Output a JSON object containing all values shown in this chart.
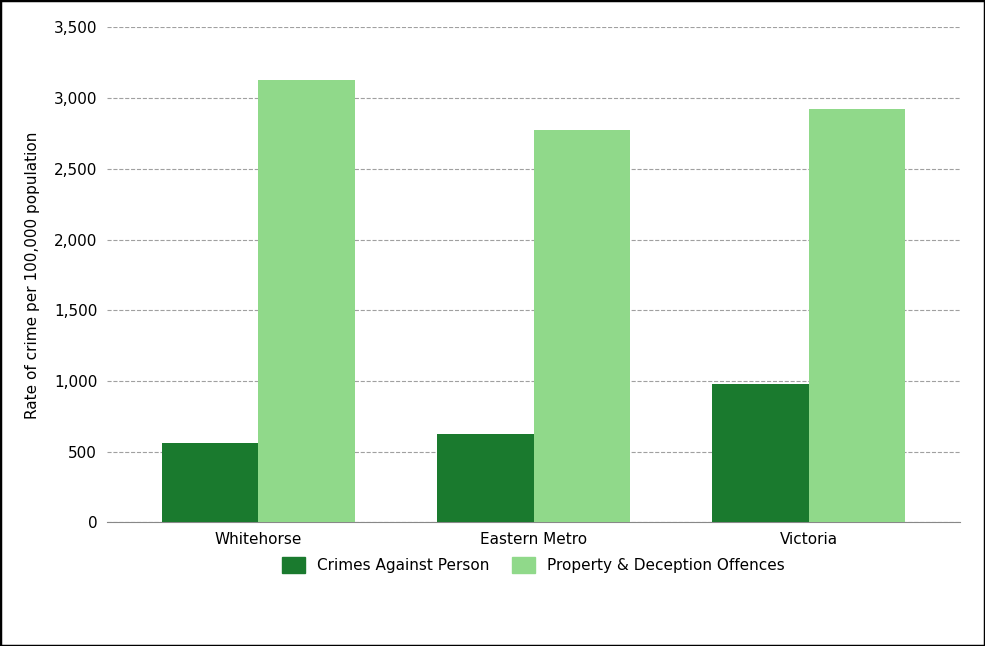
{
  "categories": [
    "Whitehorse",
    "Eastern Metro",
    "Victoria"
  ],
  "series": [
    {
      "name": "Crimes Against Person",
      "values": [
        560,
        625,
        975
      ],
      "color": "#1a7a2e"
    },
    {
      "name": "Property & Deception Offences",
      "values": [
        3130,
        2775,
        2920
      ],
      "color": "#90d98a"
    }
  ],
  "ylabel": "Rate of crime per 100,000 population",
  "ylim": [
    0,
    3500
  ],
  "yticks": [
    0,
    500,
    1000,
    1500,
    2000,
    2500,
    3000,
    3500
  ],
  "bar_width": 0.35,
  "background_color": "#ffffff",
  "border_color": "#000000",
  "grid_color": "#a0a0a0",
  "axis_fontsize": 11,
  "tick_fontsize": 11,
  "legend_fontsize": 11
}
